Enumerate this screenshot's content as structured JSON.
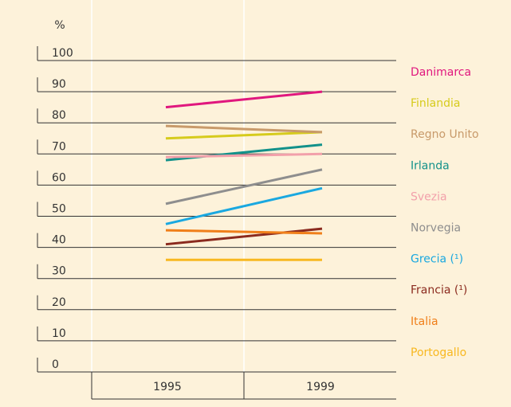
{
  "chart_data": {
    "type": "line",
    "y_label": "%",
    "categories": [
      "1995",
      "1999"
    ],
    "ylim": [
      0,
      100
    ],
    "yticks": [
      0,
      10,
      20,
      30,
      40,
      50,
      60,
      70,
      80,
      90,
      100
    ],
    "grid": true,
    "series": [
      {
        "name": "Danimarca",
        "color": "#e0177e",
        "values": [
          85,
          90
        ]
      },
      {
        "name": "Finlandia",
        "color": "#d6cb1c",
        "values": [
          75,
          77
        ]
      },
      {
        "name": "Regno Unito",
        "color": "#c89a6a",
        "values": [
          79,
          77
        ]
      },
      {
        "name": "Irlanda",
        "color": "#12918a",
        "values": [
          68,
          73
        ]
      },
      {
        "name": "Svezia",
        "color": "#f2a0aa",
        "values": [
          69,
          70
        ]
      },
      {
        "name": "Norvegia",
        "color": "#8e8e8e",
        "values": [
          54,
          65
        ]
      },
      {
        "name": "Grecia (¹)",
        "color": "#1aa8e0",
        "values": [
          47.5,
          59
        ]
      },
      {
        "name": "Francia (¹)",
        "color": "#8b2a1e",
        "values": [
          41,
          46
        ]
      },
      {
        "name": "Italia",
        "color": "#f07f1a",
        "values": [
          45.5,
          44.5
        ]
      },
      {
        "name": "Portogallo",
        "color": "#f8b820",
        "values": [
          36,
          36
        ]
      }
    ]
  }
}
